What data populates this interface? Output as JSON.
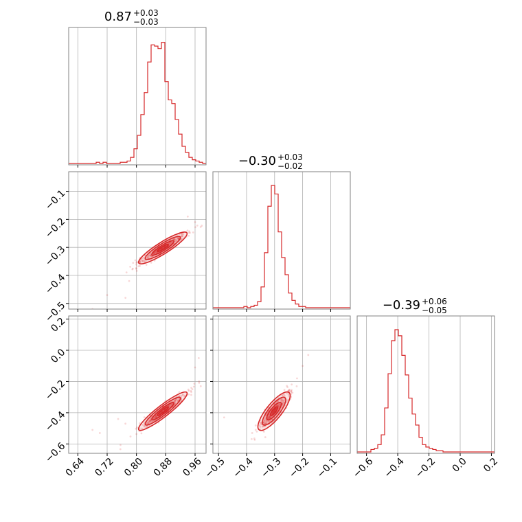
{
  "chart_data": {
    "type": "corner",
    "color": "#d62728",
    "parameters": [
      {
        "id": "p0",
        "range": [
          0.615,
          0.99
        ],
        "ticks": [
          0.64,
          0.72,
          0.8,
          0.88,
          0.96
        ],
        "tick_labels": [
          "0.64",
          "0.72",
          "0.80",
          "0.88",
          "0.96"
        ],
        "title_main": "0.87",
        "title_plus": "+0.03",
        "title_minus": "−0.03",
        "hist_values": [
          0,
          0,
          0,
          0,
          0,
          0,
          0,
          0,
          0.01,
          0,
          0.01,
          0,
          0,
          0,
          0,
          0.01,
          0.01,
          0.02,
          0.05,
          0.12,
          0.23,
          0.4,
          0.58,
          0.83,
          0.97,
          0.96,
          0.94,
          0.99,
          0.67,
          0.52,
          0.49,
          0.36,
          0.24,
          0.14,
          0.09,
          0.05,
          0.03,
          0.02,
          0.01,
          0
        ]
      },
      {
        "id": "p1",
        "range": [
          -0.52,
          -0.03
        ],
        "ticks": [
          -0.5,
          -0.4,
          -0.3,
          -0.2,
          -0.1
        ],
        "tick_labels": [
          "−0.5",
          "−0.4",
          "−0.3",
          "−0.2",
          "−0.1"
        ],
        "title_main": "−0.30",
        "title_plus": "+0.03",
        "title_minus": "−0.02",
        "hist_values": [
          0,
          0,
          0,
          0,
          0,
          0,
          0,
          0,
          0,
          0.01,
          0,
          0.01,
          0.02,
          0.05,
          0.17,
          0.45,
          0.83,
          1.0,
          0.93,
          0.62,
          0.41,
          0.27,
          0.12,
          0.06,
          0.03,
          0.01,
          0.01,
          0,
          0,
          0,
          0,
          0,
          0,
          0,
          0,
          0,
          0,
          0,
          0,
          0
        ]
      },
      {
        "id": "p2",
        "range": [
          -0.66,
          0.22
        ],
        "ticks": [
          -0.6,
          -0.4,
          -0.2,
          0.0,
          0.2
        ],
        "tick_labels": [
          "−0.6",
          "−0.4",
          "−0.2",
          "0.0",
          "0.2"
        ],
        "title_main": "−0.39",
        "title_plus": "+0.06",
        "title_minus": "−0.05",
        "hist_values": [
          0,
          0,
          0,
          0,
          0.02,
          0.03,
          0.06,
          0.14,
          0.36,
          0.64,
          0.91,
          1.0,
          0.95,
          0.79,
          0.63,
          0.44,
          0.31,
          0.22,
          0.12,
          0.06,
          0.04,
          0.03,
          0.02,
          0.01,
          0.01,
          0,
          0,
          0,
          0,
          0,
          0,
          0,
          0,
          0,
          0,
          0,
          0,
          0,
          0,
          0
        ]
      }
    ],
    "correlations": [
      {
        "x": "p0",
        "y": "p1",
        "center": [
          0.872,
          -0.302
        ],
        "axis_dx": 0.03,
        "axis_dy": 0.025,
        "rho": 0.96,
        "outliers": [
          [
            0.68,
            -0.52
          ],
          [
            0.72,
            -0.47
          ],
          [
            0.77,
            -0.48
          ],
          [
            0.78,
            -0.42
          ],
          [
            0.94,
            -0.19
          ],
          [
            0.96,
            -0.21
          ],
          [
            0.8,
            -0.355
          ]
        ]
      },
      {
        "x": "p0",
        "y": "p2",
        "center": [
          0.872,
          -0.39
        ],
        "axis_dx": 0.03,
        "axis_dy": 0.055,
        "rho": 0.97,
        "outliers": [
          [
            0.68,
            -0.51
          ],
          [
            0.7,
            -0.53
          ],
          [
            0.77,
            -0.47
          ],
          [
            0.96,
            -0.11
          ],
          [
            0.97,
            -0.05
          ],
          [
            0.75,
            -0.44
          ]
        ]
      },
      {
        "x": "p1",
        "y": "p2",
        "center": [
          -0.302,
          -0.39
        ],
        "axis_dx": 0.025,
        "axis_dy": 0.055,
        "rho": 0.92,
        "outliers": [
          [
            -0.48,
            -0.43
          ],
          [
            -0.38,
            -0.53
          ],
          [
            -0.18,
            -0.03
          ],
          [
            -0.2,
            -0.1
          ],
          [
            -0.34,
            -0.46
          ],
          [
            -0.22,
            -0.18
          ]
        ]
      }
    ]
  }
}
